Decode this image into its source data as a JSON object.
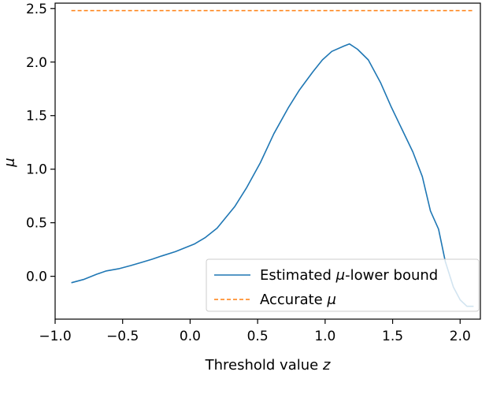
{
  "chart_data": {
    "type": "line",
    "title": "",
    "xlabel": "Threshold value z",
    "ylabel": "μ",
    "xlim": [
      -1.0,
      2.15
    ],
    "ylim": [
      -0.4,
      2.55
    ],
    "grid": false,
    "legend_placement": "lower-right",
    "x_ticks": [
      -1.0,
      -0.5,
      0.0,
      0.5,
      1.0,
      1.5,
      2.0
    ],
    "x_tick_labels": [
      "−1.0",
      "−0.5",
      "0.0",
      "0.5",
      "1.0",
      "1.5",
      "2.0"
    ],
    "y_ticks": [
      0.0,
      0.5,
      1.0,
      1.5,
      2.0,
      2.5
    ],
    "y_tick_labels": [
      "0.0",
      "0.5",
      "1.0",
      "1.5",
      "2.0",
      "2.5"
    ],
    "series": [
      {
        "name": "Estimated μ-lower bound",
        "color": "#1f77b4",
        "style": "solid",
        "x": [
          -0.88,
          -0.79,
          -0.69,
          -0.62,
          -0.53,
          -0.44,
          -0.36,
          -0.28,
          -0.21,
          -0.11,
          0.03,
          0.11,
          0.2,
          0.33,
          0.42,
          0.52,
          0.62,
          0.73,
          0.81,
          0.91,
          0.98,
          1.05,
          1.14,
          1.18,
          1.24,
          1.32,
          1.41,
          1.49,
          1.57,
          1.65,
          1.72,
          1.78,
          1.84,
          1.89,
          1.95,
          2.0,
          2.05,
          2.1
        ],
        "y": [
          -0.06,
          -0.03,
          0.02,
          0.05,
          0.07,
          0.1,
          0.13,
          0.16,
          0.19,
          0.23,
          0.3,
          0.36,
          0.45,
          0.65,
          0.83,
          1.06,
          1.33,
          1.58,
          1.74,
          1.91,
          2.02,
          2.1,
          2.15,
          2.17,
          2.12,
          2.02,
          1.81,
          1.58,
          1.37,
          1.16,
          0.93,
          0.61,
          0.44,
          0.14,
          -0.1,
          -0.22,
          -0.28,
          -0.28
        ]
      },
      {
        "name": "Accurate μ",
        "color": "#ff7f0e",
        "style": "dashed",
        "x": [
          -0.88,
          2.1
        ],
        "y": [
          2.48,
          2.48
        ]
      }
    ],
    "legend": {
      "entries": [
        {
          "prefix": "Estimated ",
          "symbol": "μ",
          "suffix": "-lower bound"
        },
        {
          "prefix": "Accurate ",
          "symbol": "μ",
          "suffix": ""
        }
      ]
    },
    "axis_text": {
      "xlabel_prefix": "Threshold value ",
      "xlabel_var": "z",
      "ylabel_var": "μ"
    },
    "colors": {
      "axis": "#000000",
      "legend_border": "#cccccc"
    }
  }
}
